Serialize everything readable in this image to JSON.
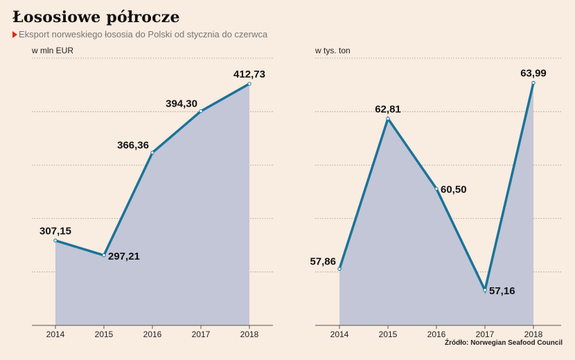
{
  "title": "Łososiowe półrocze",
  "subtitle": "Eksport norweskiego łososia do Polski od stycznia do czerwca",
  "source": "Źródło: Norwegian Seafood Council",
  "colors": {
    "line": "#1a7399",
    "area": "#c2c6d6",
    "background": "#f9ece0",
    "marker": "#e0281c"
  },
  "chart_data": [
    {
      "type": "area",
      "ylabel": "w mln EUR",
      "categories": [
        "2014",
        "2015",
        "2016",
        "2017",
        "2018"
      ],
      "values": [
        307.15,
        297.21,
        366.36,
        394.3,
        412.73
      ],
      "labels": [
        "307,15",
        "297,21",
        "366,36",
        "394,30",
        "412,73"
      ],
      "label_pos": [
        "above",
        "right",
        "left",
        "left",
        "above"
      ],
      "ylim": [
        250,
        430
      ],
      "grid": true
    },
    {
      "type": "area",
      "ylabel": "w tys. ton",
      "categories": [
        "2014",
        "2015",
        "2016",
        "2017",
        "2018"
      ],
      "values": [
        57.86,
        62.81,
        60.5,
        57.16,
        63.99
      ],
      "labels": [
        "57,86",
        "62,81",
        "60,50",
        "57,16",
        "63,99"
      ],
      "label_pos": [
        "left",
        "above",
        "right",
        "right",
        "above"
      ],
      "ylim": [
        56.0,
        64.8
      ],
      "grid": true
    }
  ]
}
